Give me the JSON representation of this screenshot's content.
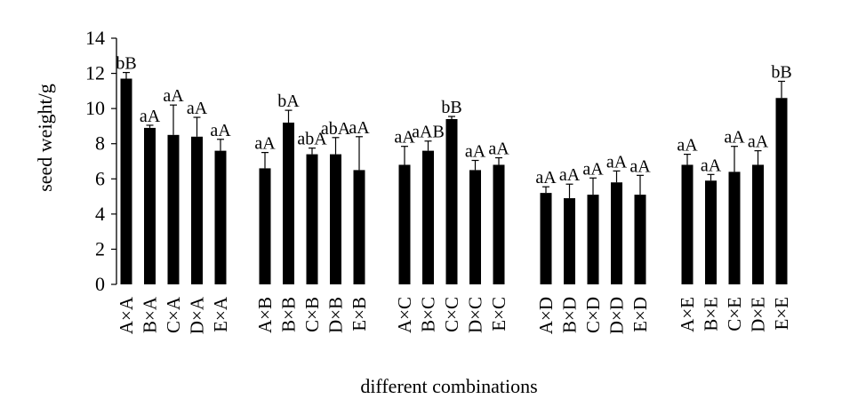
{
  "chart_data": {
    "type": "bar",
    "xlabel": "different combinations",
    "ylabel": "seed weight/g",
    "ylim": [
      0,
      14
    ],
    "yticks": [
      "0",
      "2",
      "4",
      "6",
      "8",
      "10",
      "12",
      "14"
    ],
    "grid": false,
    "legend": "none",
    "bar_color": "#000000",
    "bar_pattern": "white-dotted",
    "groups": [
      {
        "categories": [
          "A×A",
          "B×A",
          "C×A",
          "D×A",
          "E×A"
        ],
        "values": [
          11.7,
          8.9,
          8.5,
          8.4,
          7.6
        ],
        "errors": [
          0.35,
          0.15,
          1.7,
          1.1,
          0.65
        ],
        "labels": [
          "bB",
          "aA",
          "aA",
          "aA",
          "aA"
        ]
      },
      {
        "categories": [
          "A×B",
          "B×B",
          "C×B",
          "D×B",
          "E×B"
        ],
        "values": [
          6.6,
          9.2,
          7.4,
          7.4,
          6.5
        ],
        "errors": [
          0.9,
          0.7,
          0.35,
          0.95,
          1.9
        ],
        "labels": [
          "aA",
          "bA",
          "abA",
          "abA",
          "aA"
        ]
      },
      {
        "categories": [
          "A×C",
          "B×C",
          "C×C",
          "D×C",
          "E×C"
        ],
        "values": [
          6.8,
          7.6,
          9.4,
          6.5,
          6.8
        ],
        "errors": [
          1.05,
          0.55,
          0.15,
          0.55,
          0.4
        ],
        "labels": [
          "aA",
          "aAB",
          "bB",
          "aA",
          "aA"
        ]
      },
      {
        "categories": [
          "A×D",
          "B×D",
          "C×D",
          "D×D",
          "E×D"
        ],
        "values": [
          5.2,
          4.9,
          5.1,
          5.8,
          5.1
        ],
        "errors": [
          0.35,
          0.8,
          0.95,
          0.65,
          1.1
        ],
        "labels": [
          "aA",
          "aA",
          "aA",
          "aA",
          "aA"
        ]
      },
      {
        "categories": [
          "A×E",
          "B×E",
          "C×E",
          "D×E",
          "E×E"
        ],
        "values": [
          6.8,
          5.9,
          6.4,
          6.8,
          10.6
        ],
        "errors": [
          0.6,
          0.35,
          1.45,
          0.8,
          0.95
        ],
        "labels": [
          "aA",
          "aA",
          "aA",
          "aA",
          "bB"
        ]
      }
    ]
  }
}
